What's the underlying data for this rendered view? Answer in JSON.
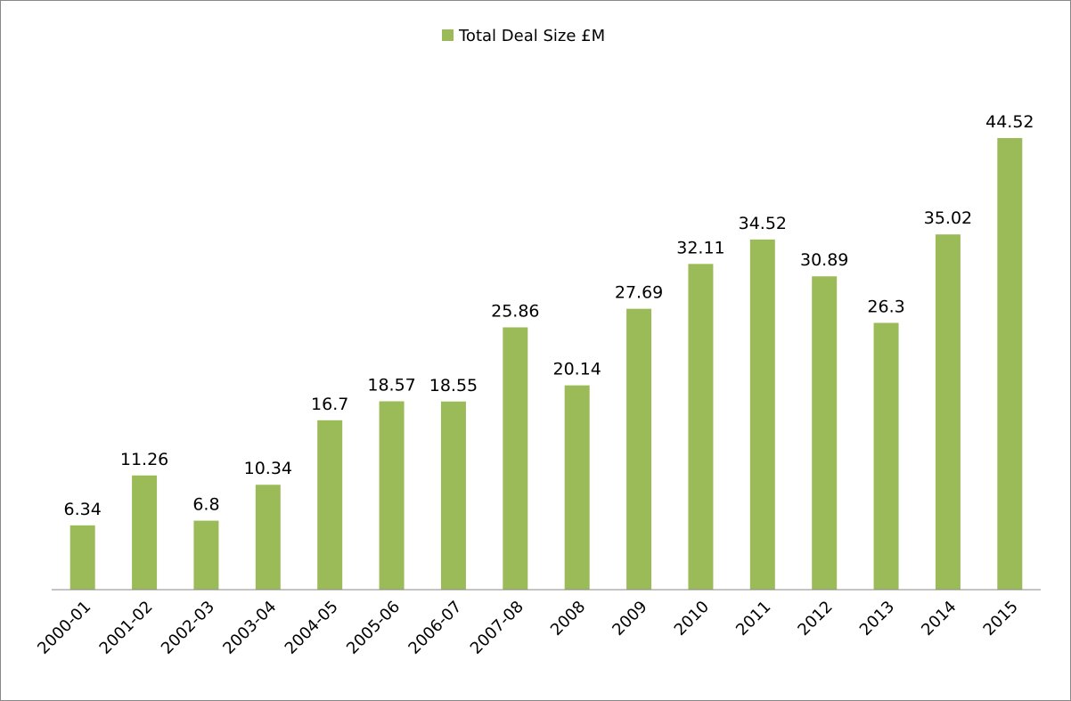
{
  "chart_data": {
    "type": "bar",
    "categories": [
      "2000-01",
      "2001-02",
      "2002-03",
      "2003-04",
      "2004-05",
      "2005-06",
      "2006-07",
      "2007-08",
      "2008",
      "2009",
      "2010",
      "2011",
      "2012",
      "2013",
      "2014",
      "2015"
    ],
    "series": [
      {
        "name": "Total Deal Size £M",
        "color": "#9bbb59",
        "values": [
          6.34,
          11.26,
          6.8,
          10.34,
          16.7,
          18.57,
          18.55,
          25.86,
          20.14,
          27.69,
          32.11,
          34.52,
          30.89,
          26.3,
          35.02,
          44.52
        ]
      }
    ],
    "legend": "top"
  }
}
